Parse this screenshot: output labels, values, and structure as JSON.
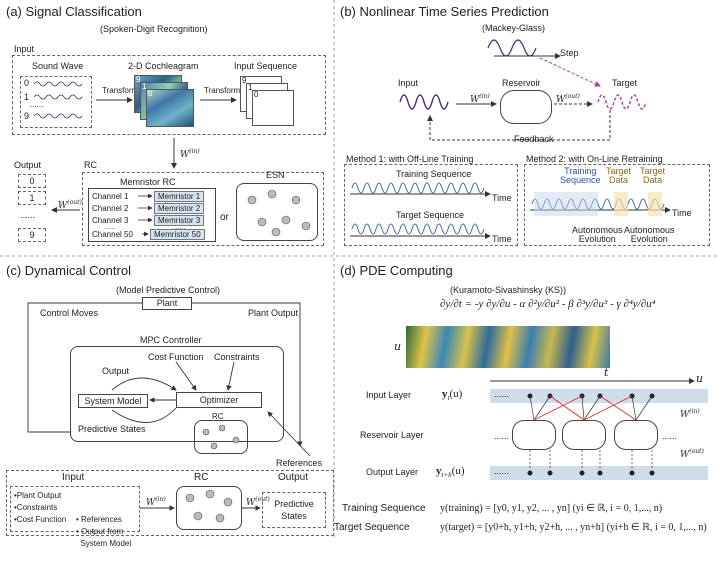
{
  "panels": {
    "a": {
      "title": "(a) Signal Classification",
      "subtitle": "(Spoken-Digit Recognition)",
      "input_label": "Input",
      "sound_wave": "Sound Wave",
      "cochleagram": "2-D Cochleagram",
      "input_sequence": "Input Sequence",
      "transform1": "Transform",
      "transform2": "Transform",
      "digits": [
        "0",
        "1",
        "9"
      ],
      "dots": "......",
      "win": "W",
      "win_sup": "(in)",
      "wout": "W",
      "wout_sup": "(out)",
      "output_label": "Output",
      "outputs": [
        "0",
        "1",
        "......",
        "9"
      ],
      "rc_label": "RC",
      "memristor_rc": "Memristor RC",
      "channels": [
        "Channel 1",
        "Channel 2",
        "Channel 3",
        "Channel 50"
      ],
      "memristors": [
        "Memristor 1",
        "Memristor 2",
        "Memristor 3",
        "Memristor 50"
      ],
      "or": "or",
      "esn": "ESN",
      "chan_dots": "......",
      "mem_dots": "......",
      "coch_small": [
        "9",
        "1",
        "0"
      ],
      "seq_small": [
        "9",
        "1",
        "0"
      ],
      "time_label": "Time",
      "freq_label": "Frequency"
    },
    "b": {
      "title": "(b) Nonlinear Time Series Prediction",
      "subtitle": "(Mackey-Glass)",
      "step": "Step",
      "input": "Input",
      "reservoir": "Reservoir",
      "target": "Target",
      "win": "W",
      "win_sup": "(in)",
      "wout": "W",
      "wout_sup": "(out)",
      "feedback": "Feedback",
      "method1": "Method 1: with Off-Line Training",
      "method2": "Method 2: with On-Line Retraining",
      "training_sequence": "Training Sequence",
      "target_sequence": "Target Sequence",
      "time": "Time",
      "training_seq2": [
        "Training",
        "Sequence"
      ],
      "target_data1": [
        "Target",
        "Data"
      ],
      "target_data2": [
        "Target",
        "Data"
      ],
      "auto1": [
        "Autonomous",
        "Evolution"
      ],
      "auto2": [
        "Autonomous",
        "Evolution"
      ]
    },
    "c": {
      "title": "(c) Dynamical Control",
      "subtitle": "(Model Predictive Control)",
      "plant": "Plant",
      "control_moves": "Control Moves",
      "plant_output": "Plant Output",
      "mpc_controller": "MPC Controller",
      "cost_function": "Cost Function",
      "constraints": "Constraints",
      "output": "Output",
      "system_model": "System Model",
      "optimizer": "Optimizer",
      "predictive_states": "Predictive States",
      "rc": "RC",
      "references": "References",
      "input_hdr": "Input",
      "rc_hdr": "RC",
      "output_hdr": "Output",
      "inputs_left": [
        "•Plant Output",
        "•Constraints",
        "•Cost Function"
      ],
      "inputs_right": [
        "• References",
        "• Output from",
        "  System Model"
      ],
      "win": "W",
      "win_sup": "(in)",
      "wout": "W",
      "wout_sup": "(out)",
      "out_box": [
        "Predictive",
        "States"
      ]
    },
    "d": {
      "title": "(d) PDE Computing",
      "subtitle": "(Kuramoto-Sivashinsky (KS))",
      "u_axis": "u",
      "t_axis": "t",
      "u_right": "u",
      "input_layer": "Input Layer",
      "reservoir_layer": "Reservoir Layer",
      "output_layer": "Output Layer",
      "y_in": "y",
      "y_in_sub": "t",
      "y_in_arg": "(u)",
      "y_out": "y",
      "y_out_sub": "t+h",
      "y_out_arg": "(u)",
      "win": "W",
      "win_sup": "(in)",
      "wout": "W",
      "wout_sup": "(out)",
      "layer_dots": "......",
      "training_sequence": "Training Sequence",
      "target_sequence": "Target Sequence",
      "train_eq": "y(training) = [y0, y1, y2, ... , yn] (yi ∈ ℝ, i = 0, 1,..., n)",
      "target_eq": "y(target) = [y0+h, y1+h, y2+h, ... , yn+h] (yi+h ∈ ℝ, i = 0, 1,..., n)"
    }
  },
  "colors": {
    "wave_purple": "#4b2a84",
    "target_magenta": "#b03aa0",
    "memristor_fill": "#c9dbee",
    "layer_fill": "#cfdcea",
    "target_band": "#f3e3b0",
    "red": "#d0322a"
  }
}
